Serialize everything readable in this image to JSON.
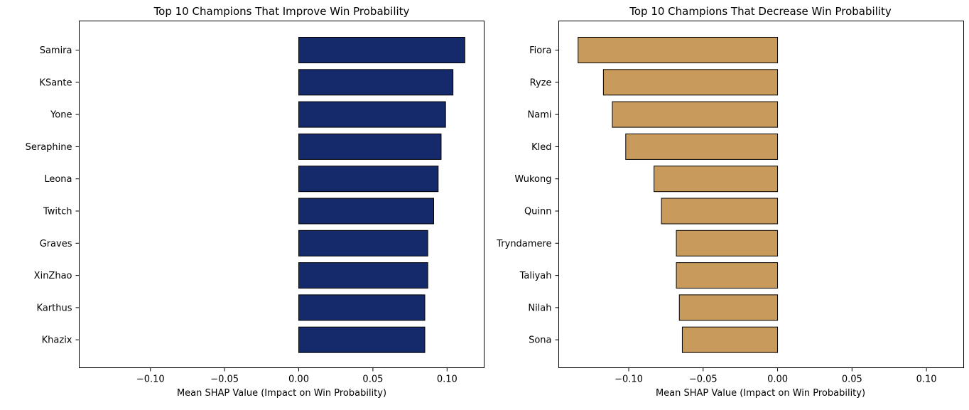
{
  "chart_data": [
    {
      "type": "bar",
      "orientation": "horizontal",
      "title": "Top 10 Champions That Improve Win Probability",
      "xlabel": "Mean SHAP Value (Impact on Win Probability)",
      "ylabel": "",
      "xlim": [
        -0.148,
        0.125
      ],
      "xticks": [
        -0.1,
        -0.05,
        0.0,
        0.05,
        0.1
      ],
      "xtick_labels": [
        "−0.10",
        "−0.05",
        "0.00",
        "0.05",
        "0.10"
      ],
      "categories": [
        "Samira",
        "KSante",
        "Yone",
        "Seraphine",
        "Leona",
        "Twitch",
        "Graves",
        "XinZhao",
        "Karthus",
        "Khazix"
      ],
      "values": [
        0.112,
        0.104,
        0.099,
        0.096,
        0.094,
        0.091,
        0.087,
        0.087,
        0.085,
        0.085
      ],
      "bar_color": "#152a6b",
      "edge_color": "#000000",
      "grid": false
    },
    {
      "type": "bar",
      "orientation": "horizontal",
      "title": "Top 10 Champions That Decrease Win Probability",
      "xlabel": "Mean SHAP Value (Impact on Win Probability)",
      "ylabel": "",
      "xlim": [
        -0.147,
        0.125
      ],
      "xticks": [
        -0.1,
        -0.05,
        0.0,
        0.05,
        0.1
      ],
      "xtick_labels": [
        "−0.10",
        "−0.05",
        "0.00",
        "0.05",
        "0.10"
      ],
      "categories": [
        "Fiora",
        "Ryze",
        "Nami",
        "Kled",
        "Wukong",
        "Quinn",
        "Tryndamere",
        "Taliyah",
        "Nilah",
        "Sona"
      ],
      "values": [
        -0.134,
        -0.117,
        -0.111,
        -0.102,
        -0.083,
        -0.078,
        -0.068,
        -0.068,
        -0.066,
        -0.064
      ],
      "bar_color": "#c89b5c",
      "edge_color": "#000000",
      "grid": false
    }
  ]
}
